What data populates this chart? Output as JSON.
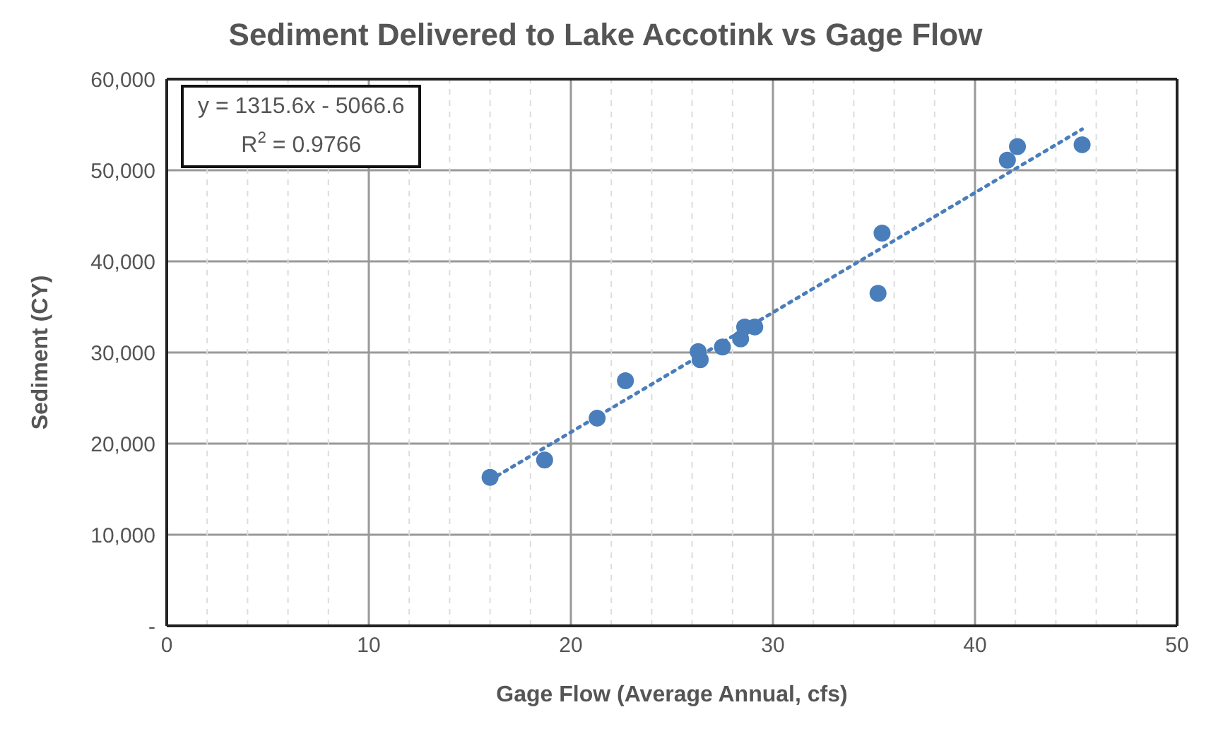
{
  "chart_data": {
    "type": "scatter",
    "title": "Sediment Delivered to Lake Accotink vs Gage Flow",
    "xlabel": "Gage Flow (Average Annual, cfs)",
    "ylabel": "Sediment (CY)",
    "series": [
      {
        "color": "#4a7ebb",
        "marker": "circle",
        "x": [
          16,
          18.7,
          21.3,
          22.7,
          26.3,
          26.4,
          27.5,
          28.4,
          28.6,
          29.1,
          35.2,
          35.4,
          41.6,
          42.1,
          45.3
        ],
        "values": [
          16300,
          18200,
          22800,
          26900,
          30100,
          29200,
          30600,
          31500,
          32800,
          32800,
          36500,
          43100,
          51100,
          52600,
          52800
        ]
      },
      {
        "type": "line",
        "color": "#4a7ebb",
        "marker": "none",
        "line_style": "dotted",
        "x": [
          16,
          45.3
        ],
        "values": [
          16000,
          54500
        ]
      }
    ],
    "xlim": [
      0,
      50
    ],
    "xticks": [
      0,
      {
        "value": 2,
        "label": null
      },
      {
        "value": 4,
        "label": null
      },
      {
        "value": 6,
        "label": null
      },
      {
        "value": 8,
        "label": null
      },
      10,
      {
        "value": 12,
        "label": null
      },
      {
        "value": 14,
        "label": null
      },
      {
        "value": 16,
        "label": null
      },
      {
        "value": 18,
        "label": null
      },
      20,
      {
        "value": 22,
        "label": null
      },
      {
        "value": 24,
        "label": null
      },
      {
        "value": 26,
        "label": null
      },
      {
        "value": 28,
        "label": null
      },
      30,
      {
        "value": 32,
        "label": null
      },
      {
        "value": 34,
        "label": null
      },
      {
        "value": 36,
        "label": null
      },
      {
        "value": 38,
        "label": null
      },
      40,
      {
        "value": 42,
        "label": null
      },
      {
        "value": 44,
        "label": null
      },
      {
        "value": 46,
        "label": null
      },
      {
        "value": 48,
        "label": null
      },
      50
    ],
    "ylim": [
      0,
      60000
    ],
    "yticks": [
      {
        "value": 0,
        "label": "-"
      },
      {
        "value": 10000,
        "label": "10,000"
      },
      {
        "value": 20000,
        "label": "20,000"
      },
      {
        "value": 30000,
        "label": "30,000"
      },
      {
        "value": 40000,
        "label": "40,000"
      },
      {
        "value": 50000,
        "label": "50,000"
      },
      {
        "value": 60000,
        "label": "60,000"
      }
    ],
    "grid": true,
    "legend": false,
    "annotations": [
      "y = 1315.6x - 5066.6",
      "R$^{2}$ = 0.9766"
    ]
  }
}
